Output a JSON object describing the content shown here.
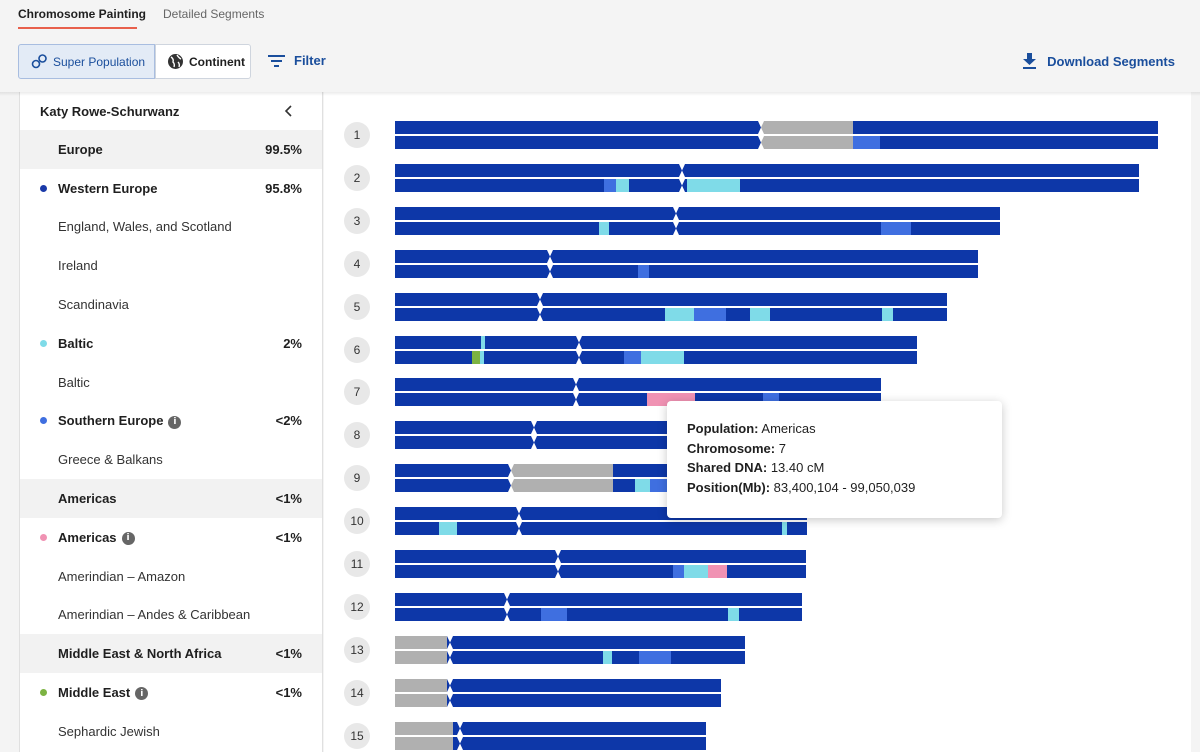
{
  "tabs": {
    "active": "Chromosome Painting",
    "inactive": "Detailed Segments"
  },
  "toolbar": {
    "super_population": "Super Population",
    "continent": "Continent",
    "filter": "Filter",
    "download": "Download Segments"
  },
  "sidebar": {
    "person": "Katy Rowe-Schurwanz",
    "rows": [
      {
        "kind": "group",
        "label": "Europe",
        "pct": "99.5%"
      },
      {
        "kind": "region",
        "label": "Western Europe",
        "pct": "95.8%",
        "dot": "#1a39a8"
      },
      {
        "kind": "sub",
        "label": "England, Wales, and Scotland"
      },
      {
        "kind": "sub",
        "label": "Ireland"
      },
      {
        "kind": "sub",
        "label": "Scandinavia"
      },
      {
        "kind": "region",
        "label": "Baltic",
        "pct": "2%",
        "dot": "#7fdbe8"
      },
      {
        "kind": "sub",
        "label": "Baltic"
      },
      {
        "kind": "region",
        "label": "Southern Europe",
        "pct": "<2%",
        "dot": "#3f6fe0",
        "info": true
      },
      {
        "kind": "sub",
        "label": "Greece & Balkans"
      },
      {
        "kind": "group",
        "label": "Americas",
        "pct": "<1%"
      },
      {
        "kind": "region",
        "label": "Americas",
        "pct": "<1%",
        "dot": "#f092b3",
        "info": true
      },
      {
        "kind": "sub",
        "label": "Amerindian – Amazon"
      },
      {
        "kind": "sub",
        "label": "Amerindian – Andes & Caribbean"
      },
      {
        "kind": "group",
        "label": "Middle East & North Africa",
        "pct": "<1%"
      },
      {
        "kind": "region",
        "label": "Middle East",
        "pct": "<1%",
        "dot": "#7cb342",
        "info": true
      },
      {
        "kind": "sub",
        "label": "Sephardic Jewish"
      }
    ]
  },
  "colors": {
    "western": "#0d37a8",
    "baltic": "#7fdbe8",
    "southern": "#3f6fe0",
    "americas": "#f092b3",
    "middle_east": "#7cb342",
    "gray": "#b0b0b0"
  },
  "chromosomes": [
    {
      "n": "1",
      "len": 763,
      "cen": 366,
      "top": [
        [
          "g",
          366,
          458
        ]
      ],
      "bot": [
        [
          "g",
          366,
          458
        ],
        [
          "s",
          458,
          485
        ]
      ]
    },
    {
      "n": "2",
      "len": 744,
      "cen": 287,
      "top": [],
      "bot": [
        [
          "s",
          209,
          221
        ],
        [
          "b",
          221,
          234
        ],
        [
          "b",
          292,
          345
        ]
      ]
    },
    {
      "n": "3",
      "len": 605,
      "cen": 281,
      "top": [],
      "bot": [
        [
          "b",
          204,
          214
        ],
        [
          "s",
          486,
          516
        ]
      ]
    },
    {
      "n": "4",
      "len": 583,
      "cen": 155,
      "top": [],
      "bot": [
        [
          "s",
          243,
          254
        ]
      ]
    },
    {
      "n": "5",
      "len": 552,
      "cen": 145,
      "top": [],
      "bot": [
        [
          "b",
          270,
          299
        ],
        [
          "s",
          299,
          331
        ],
        [
          "b",
          355,
          375
        ],
        [
          "b",
          487,
          498
        ]
      ]
    },
    {
      "n": "6",
      "len": 522,
      "cen": 184,
      "top": [
        [
          "b",
          86,
          90
        ]
      ],
      "bot": [
        [
          "w",
          0,
          2
        ],
        [
          "m",
          77,
          85
        ],
        [
          "b",
          85,
          89
        ],
        [
          "s",
          229,
          246
        ],
        [
          "b",
          246,
          289
        ]
      ]
    },
    {
      "n": "7",
      "len": 486,
      "cen": 181,
      "top": [],
      "bot": [
        [
          "a",
          252,
          300
        ],
        [
          "s",
          368,
          384
        ]
      ]
    },
    {
      "n": "8",
      "len": 460,
      "cen": 139,
      "top": [],
      "bot": []
    },
    {
      "n": "9",
      "len": 438,
      "cen": 116,
      "top": [
        [
          "g",
          116,
          218
        ]
      ],
      "bot": [
        [
          "g",
          116,
          218
        ],
        [
          "b",
          240,
          255
        ],
        [
          "s",
          255,
          272
        ]
      ]
    },
    {
      "n": "10",
      "len": 412,
      "cen": 124,
      "top": [],
      "bot": [
        [
          "b",
          44,
          62
        ],
        [
          "b",
          387,
          392
        ]
      ]
    },
    {
      "n": "11",
      "len": 411,
      "cen": 163,
      "top": [],
      "bot": [
        [
          "s",
          278,
          289
        ],
        [
          "b",
          289,
          313
        ],
        [
          "a",
          313,
          332
        ]
      ]
    },
    {
      "n": "12",
      "len": 407,
      "cen": 112,
      "top": [],
      "bot": [
        [
          "s",
          146,
          172
        ],
        [
          "b",
          333,
          344
        ]
      ]
    },
    {
      "n": "13",
      "len": 350,
      "cen": 55,
      "pre": 52,
      "top": [],
      "bot": [
        [
          "b",
          208,
          217
        ],
        [
          "s",
          244,
          276
        ]
      ]
    },
    {
      "n": "14",
      "len": 326,
      "cen": 55,
      "pre": 52,
      "top": [],
      "bot": []
    },
    {
      "n": "15",
      "len": 311,
      "cen": 65,
      "pre": 58,
      "top": [],
      "bot": []
    }
  ],
  "tooltip": {
    "population_label": "Population:",
    "population": "Americas",
    "chromosome_label": "Chromosome:",
    "chromosome": "7",
    "shared_label": "Shared DNA:",
    "shared": "13.40 cM",
    "position_label": "Position(Mb):",
    "position": "83,400,104 - 99,050,039"
  }
}
